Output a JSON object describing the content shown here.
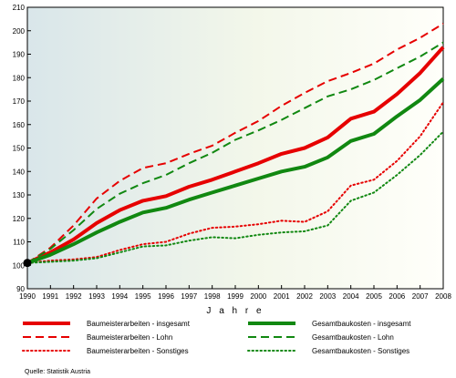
{
  "chart_data": {
    "type": "line",
    "title": "",
    "xlabel": "J a h r e",
    "ylabel": "",
    "x": [
      1990,
      1991,
      1992,
      1993,
      1994,
      1995,
      1996,
      1997,
      1998,
      1999,
      2000,
      2001,
      2002,
      2003,
      2004,
      2005,
      2006,
      2007,
      2008
    ],
    "x_ticks": [
      "1990",
      "1991",
      "1992",
      "1993",
      "1994",
      "1995",
      "1996",
      "1997",
      "1998",
      "1999",
      "2000",
      "2001",
      "2002",
      "2003",
      "2004",
      "2005",
      "2006",
      "2007",
      "2008"
    ],
    "y_ticks": [
      90,
      100,
      110,
      120,
      130,
      140,
      150,
      160,
      170,
      180,
      190,
      200,
      210
    ],
    "ylim": [
      90,
      210
    ],
    "xlim": [
      1990,
      2008
    ],
    "grid": false,
    "legend_position": "bottom",
    "series": [
      {
        "name": "Baumeisterarbeiten - insgesamt",
        "color": "#e60000",
        "style": "solid",
        "width": "thick",
        "values": [
          101,
          105.5,
          111,
          118,
          123.5,
          127.5,
          129.5,
          133.5,
          136.5,
          140,
          143.5,
          147.5,
          150,
          154.5,
          162.5,
          165.5,
          173,
          182,
          193
        ]
      },
      {
        "name": "Baumeisterarbeiten - Lohn",
        "color": "#e60000",
        "style": "dashed",
        "width": "medium",
        "values": [
          101,
          107.5,
          117,
          128.5,
          136,
          141.5,
          143.5,
          147.5,
          151,
          156.5,
          161.5,
          168,
          173.5,
          178.5,
          182,
          186,
          192,
          197,
          203
        ]
      },
      {
        "name": "Baumeisterarbeiten - Sonstiges",
        "color": "#e60000",
        "style": "dotted",
        "width": "medium",
        "values": [
          101,
          102,
          102.5,
          103.5,
          106.5,
          109,
          110,
          113.5,
          116,
          116.5,
          117.5,
          119,
          118.5,
          123,
          134,
          136.5,
          144.5,
          155,
          169.5
        ]
      },
      {
        "name": "Gesamtbaukosten - insgesamt",
        "color": "#118811",
        "style": "solid",
        "width": "thick",
        "values": [
          101,
          104.5,
          109,
          114,
          118.5,
          122.5,
          124.5,
          128,
          131,
          134,
          137,
          140,
          142,
          146,
          153,
          156,
          163.5,
          170.5,
          179.5
        ]
      },
      {
        "name": "Gesamtbaukosten - Lohn",
        "color": "#118811",
        "style": "dashed",
        "width": "medium",
        "values": [
          101,
          107,
          115,
          124,
          130.5,
          135,
          138.5,
          143.5,
          148,
          153.5,
          157.5,
          162,
          167,
          172,
          175,
          179,
          184,
          189,
          195
        ]
      },
      {
        "name": "Gesamtbaukosten - Sonstiges",
        "color": "#118811",
        "style": "dotted",
        "width": "medium",
        "values": [
          101,
          101.5,
          102,
          103,
          105.5,
          108,
          108.5,
          110.5,
          112,
          111.5,
          113,
          114,
          114.5,
          117,
          127.5,
          131,
          138.5,
          147,
          157
        ]
      }
    ],
    "start_marker": {
      "x": 1990,
      "y": 101,
      "color": "#000000"
    }
  },
  "source": "Quelle: Statistik Austria"
}
